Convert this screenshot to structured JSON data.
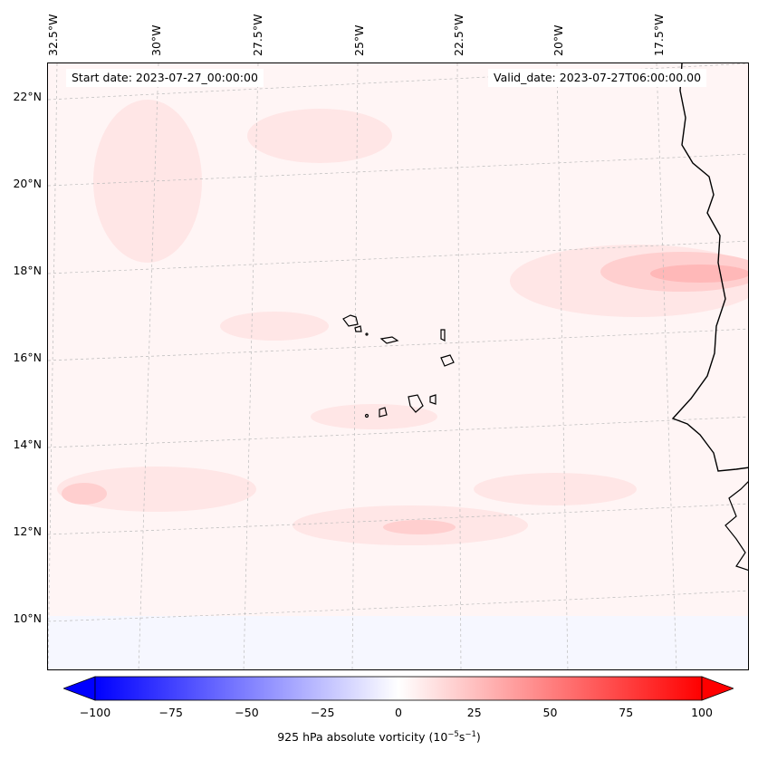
{
  "map": {
    "start_date": "Start date: 2023-07-27_00:00:00",
    "valid_date": "Valid_date: 2023-07-27T06:00:00.00",
    "longitude_labels": [
      "32.5°W",
      "30°W",
      "27.5°W",
      "25°W",
      "22.5°W",
      "20°W",
      "17.5°W"
    ],
    "latitude_labels": [
      "22°N",
      "20°N",
      "18°N",
      "16°N",
      "14°N",
      "12°N",
      "10°N"
    ],
    "field": "925 hPa absolute vorticity",
    "colors": {
      "positive": "#ff0000",
      "negative": "#0000ff",
      "neutral": "#ffffff",
      "coastline": "#000000",
      "gridline": "#bbbbbb"
    }
  },
  "colorbar": {
    "min": -100,
    "max": 100,
    "tick_values": [
      -100,
      -75,
      -50,
      -25,
      0,
      25,
      50,
      75,
      100
    ],
    "tick_labels": [
      "−100",
      "−75",
      "−50",
      "−25",
      "0",
      "25",
      "50",
      "75",
      "100"
    ],
    "label_text": "925 hPa absolute vorticity (10",
    "label_exp1": "−5",
    "label_mid": "s",
    "label_exp2": "−1",
    "label_end": ")",
    "extend": "both"
  }
}
